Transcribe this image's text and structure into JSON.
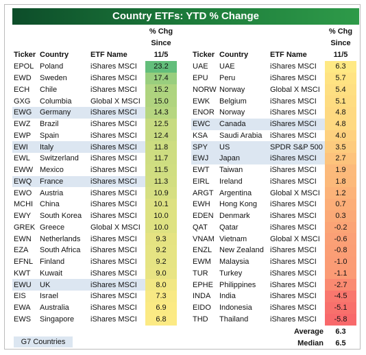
{
  "title": "Country ETFs: YTD % Change",
  "columns": [
    "Ticker",
    "Country",
    "ETF Name"
  ],
  "value_header": [
    "% Chg",
    "Since",
    "11/5"
  ],
  "tables": [
    {
      "rows": [
        {
          "ticker": "EPOL",
          "country": "Poland",
          "etf": "iShares MSCI",
          "value": "23.2"
        },
        {
          "ticker": "EWD",
          "country": "Sweden",
          "etf": "iShares MSCI",
          "value": "17.4"
        },
        {
          "ticker": "ECH",
          "country": "Chile",
          "etf": "iShares MSCI",
          "value": "15.2"
        },
        {
          "ticker": "GXG",
          "country": "Columbia",
          "etf": "Global X MSCI",
          "value": "15.0"
        },
        {
          "ticker": "EWG",
          "country": "Germany",
          "etf": "iShares MSCI",
          "value": "14.3",
          "g7": true
        },
        {
          "ticker": "EWZ",
          "country": "Brazil",
          "etf": "iShares MSCI",
          "value": "12.5"
        },
        {
          "ticker": "EWP",
          "country": "Spain",
          "etf": "iShares MSCI",
          "value": "12.4"
        },
        {
          "ticker": "EWI",
          "country": "Italy",
          "etf": "iShares MSCI",
          "value": "11.8",
          "g7": true
        },
        {
          "ticker": "EWL",
          "country": "Switzerland",
          "etf": "iShares MSCI",
          "value": "11.7"
        },
        {
          "ticker": "EWW",
          "country": "Mexico",
          "etf": "iShares MSCI",
          "value": "11.5"
        },
        {
          "ticker": "EWQ",
          "country": "France",
          "etf": "iShares MSCI",
          "value": "11.3",
          "g7": true
        },
        {
          "ticker": "EWO",
          "country": "Austria",
          "etf": "iShares MSCI",
          "value": "10.9"
        },
        {
          "ticker": "MCHI",
          "country": "China",
          "etf": "iShares MSCI",
          "value": "10.1"
        },
        {
          "ticker": "EWY",
          "country": "South Korea",
          "etf": "iShares MSCI",
          "value": "10.0"
        },
        {
          "ticker": "GREK",
          "country": "Greece",
          "etf": "Global X MSCI",
          "value": "10.0"
        },
        {
          "ticker": "EWN",
          "country": "Netherlands",
          "etf": "iShares MSCI",
          "value": "9.3"
        },
        {
          "ticker": "EZA",
          "country": "South Africa",
          "etf": "iShares MSCI",
          "value": "9.2"
        },
        {
          "ticker": "EFNL",
          "country": "Finland",
          "etf": "iShares MSCI",
          "value": "9.2"
        },
        {
          "ticker": "KWT",
          "country": "Kuwait",
          "etf": "iShares MSCI",
          "value": "9.0"
        },
        {
          "ticker": "EWU",
          "country": "UK",
          "etf": "iShares MSCI",
          "value": "8.0",
          "g7": true
        },
        {
          "ticker": "EIS",
          "country": "Israel",
          "etf": "iShares MSCI",
          "value": "7.3"
        },
        {
          "ticker": "EWA",
          "country": "Australia",
          "etf": "iShares MSCI",
          "value": "6.9"
        },
        {
          "ticker": "EWS",
          "country": "Singapore",
          "etf": "iShares MSCI",
          "value": "6.8"
        }
      ]
    },
    {
      "rows": [
        {
          "ticker": "UAE",
          "country": "UAE",
          "etf": "iShares MSCI",
          "value": "6.3"
        },
        {
          "ticker": "EPU",
          "country": "Peru",
          "etf": "iShares MSCI",
          "value": "5.7"
        },
        {
          "ticker": "NORW",
          "country": "Norway",
          "etf": "Global X MSCI",
          "value": "5.4"
        },
        {
          "ticker": "EWK",
          "country": "Belgium",
          "etf": "iShares MSCI",
          "value": "5.1"
        },
        {
          "ticker": "ENOR",
          "country": "Norway",
          "etf": "iShares MSCI",
          "value": "4.8"
        },
        {
          "ticker": "EWC",
          "country": "Canada",
          "etf": "iShares MSCI",
          "value": "4.8",
          "g7": true
        },
        {
          "ticker": "KSA",
          "country": "Saudi Arabia",
          "etf": "iShares MSCI",
          "value": "4.0"
        },
        {
          "ticker": "SPY",
          "country": "US",
          "etf": "SPDR S&P 500",
          "value": "3.5",
          "g7": true
        },
        {
          "ticker": "EWJ",
          "country": "Japan",
          "etf": "iShares MSCI",
          "value": "2.7",
          "g7": true
        },
        {
          "ticker": "EWT",
          "country": "Taiwan",
          "etf": "iShares MSCI",
          "value": "1.9"
        },
        {
          "ticker": "EIRL",
          "country": "Ireland",
          "etf": "iShares MSCI",
          "value": "1.8"
        },
        {
          "ticker": "ARGT",
          "country": "Argentina",
          "etf": "Global X MSCI",
          "value": "1.2"
        },
        {
          "ticker": "EWH",
          "country": "Hong Kong",
          "etf": "iShares MSCI",
          "value": "0.7"
        },
        {
          "ticker": "EDEN",
          "country": "Denmark",
          "etf": "iShares MSCI",
          "value": "0.3"
        },
        {
          "ticker": "QAT",
          "country": "Qatar",
          "etf": "iShares MSCI",
          "value": "-0.2"
        },
        {
          "ticker": "VNAM",
          "country": "Vietnam",
          "etf": "Global X MSCI",
          "value": "-0.6"
        },
        {
          "ticker": "ENZL",
          "country": "New Zealand",
          "etf": "iShares MSCI",
          "value": "-0.8"
        },
        {
          "ticker": "EWM",
          "country": "Malaysia",
          "etf": "iShares MSCI",
          "value": "-1.0"
        },
        {
          "ticker": "TUR",
          "country": "Turkey",
          "etf": "iShares MSCI",
          "value": "-1.1"
        },
        {
          "ticker": "EPHE",
          "country": "Philippines",
          "etf": "iShares MSCI",
          "value": "-2.7"
        },
        {
          "ticker": "INDA",
          "country": "India",
          "etf": "iShares MSCI",
          "value": "-4.5"
        },
        {
          "ticker": "EIDO",
          "country": "Indonesia",
          "etf": "iShares MSCI",
          "value": "-5.1"
        },
        {
          "ticker": "THD",
          "country": "Thailand",
          "etf": "iShares MSCI",
          "value": "-5.8"
        }
      ]
    }
  ],
  "summary": [
    {
      "label": "Average",
      "value": "6.3"
    },
    {
      "label": "Median",
      "value": "6.5"
    }
  ],
  "legend": "G7 Countries",
  "colors": {
    "high": "#63be7b",
    "mid": "#ffeb84",
    "low": "#f8696b",
    "g7": "#dce6f1"
  }
}
